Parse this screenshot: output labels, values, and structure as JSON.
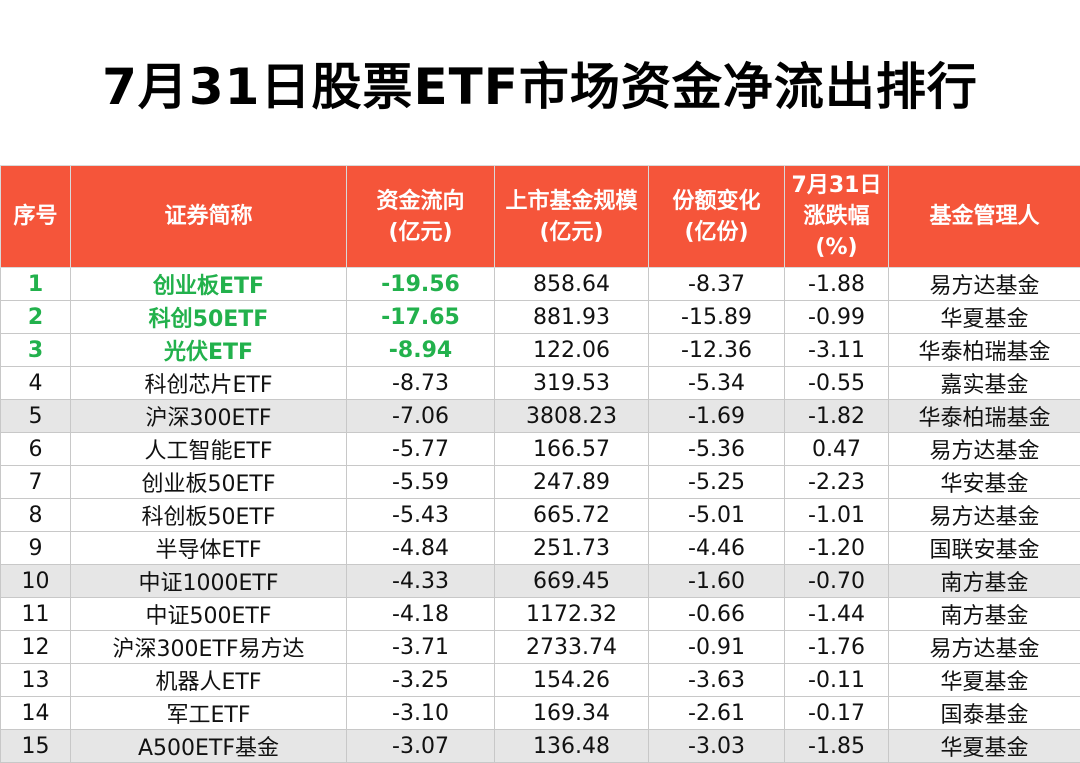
{
  "title": "7月31日股票ETF市场资金净流出排行",
  "headers": [
    [
      "序号"
    ],
    [
      "证券简称"
    ],
    [
      "资金流向",
      "(亿元)"
    ],
    [
      "上市基金规模",
      "(亿元)"
    ],
    [
      "份额变化",
      "(亿份)"
    ],
    [
      "7月31日",
      "涨跌幅",
      "(%)"
    ],
    [
      "基金管理人"
    ]
  ],
  "rows": [
    [
      "1",
      "创业板ETF",
      "-19.56",
      "858.64",
      "-8.37",
      "-1.88",
      "易方达基金"
    ],
    [
      "2",
      "科创50ETF",
      "-17.65",
      "881.93",
      "-15.89",
      "-0.99",
      "华夏基金"
    ],
    [
      "3",
      "光伏ETF",
      "-8.94",
      "122.06",
      "-12.36",
      "-3.11",
      "华泰柏瑞基金"
    ],
    [
      "4",
      "科创芯片ETF",
      "-8.73",
      "319.53",
      "-5.34",
      "-0.55",
      "嘉实基金"
    ],
    [
      "5",
      "沪深300ETF",
      "-7.06",
      "3808.23",
      "-1.69",
      "-1.82",
      "华泰柏瑞基金"
    ],
    [
      "6",
      "人工智能ETF",
      "-5.77",
      "166.57",
      "-5.36",
      "0.47",
      "易方达基金"
    ],
    [
      "7",
      "创业板50ETF",
      "-5.59",
      "247.89",
      "-5.25",
      "-2.23",
      "华安基金"
    ],
    [
      "8",
      "科创板50ETF",
      "-5.43",
      "665.72",
      "-5.01",
      "-1.01",
      "易方达基金"
    ],
    [
      "9",
      "半导体ETF",
      "-4.84",
      "251.73",
      "-4.46",
      "-1.20",
      "国联安基金"
    ],
    [
      "10",
      "中证1000ETF",
      "-4.33",
      "669.45",
      "-1.60",
      "-0.70",
      "南方基金"
    ],
    [
      "11",
      "中证500ETF",
      "-4.18",
      "1172.32",
      "-0.66",
      "-1.44",
      "南方基金"
    ],
    [
      "12",
      "沪深300ETF易方达",
      "-3.71",
      "2733.74",
      "-0.91",
      "-1.76",
      "易方达基金"
    ],
    [
      "13",
      "机器人ETF",
      "-3.25",
      "154.26",
      "-3.63",
      "-0.11",
      "华夏基金"
    ],
    [
      "14",
      "军工ETF",
      "-3.10",
      "169.34",
      "-2.61",
      "-0.17",
      "国泰基金"
    ],
    [
      "15",
      "A500ETF基金",
      "-3.07",
      "136.48",
      "-3.03",
      "-1.85",
      "华夏基金"
    ]
  ],
  "colors": {
    "header_bg": "#f5553a",
    "highlight_text": "#22b14c",
    "shaded_row": "#e6e6e6"
  }
}
